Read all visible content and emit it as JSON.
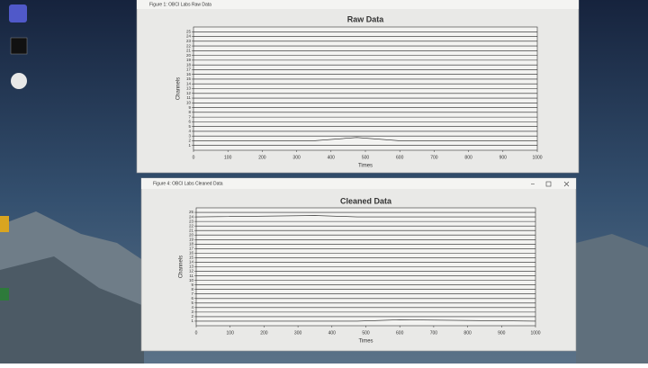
{
  "windows": [
    {
      "title": "Figure 1: OBCI Labs Raw Data"
    },
    {
      "title": "Figure 4: OBCI Labs Cleaned Data"
    }
  ],
  "chart_data": [
    {
      "type": "line",
      "title": "Raw Data",
      "xlabel": "Times",
      "ylabel": "Channels",
      "x": [
        0,
        350,
        475,
        600,
        1000
      ],
      "xlim": [
        0,
        1000
      ],
      "xticks": [
        0,
        100,
        200,
        300,
        400,
        500,
        600,
        700,
        800,
        900,
        1000
      ],
      "ylim": [
        0,
        26
      ],
      "yticks": [
        1,
        2,
        3,
        4,
        5,
        6,
        7,
        8,
        9,
        10,
        11,
        12,
        13,
        14,
        15,
        16,
        17,
        18,
        19,
        20,
        21,
        22,
        23,
        24,
        25
      ],
      "color": "#222222",
      "series": [
        {
          "values": [
            1,
            1,
            1,
            1,
            1
          ]
        },
        {
          "values": [
            2,
            2,
            2.7,
            2,
            2
          ]
        },
        {
          "values": [
            3,
            3,
            3,
            3,
            3
          ]
        },
        {
          "values": [
            4,
            4,
            4,
            4,
            4
          ]
        },
        {
          "values": [
            5,
            5,
            5,
            5,
            5
          ]
        },
        {
          "values": [
            6,
            6,
            6,
            6,
            6
          ]
        },
        {
          "values": [
            7,
            7,
            7,
            7,
            7
          ]
        },
        {
          "values": [
            8,
            8,
            8,
            8,
            8
          ]
        },
        {
          "values": [
            9,
            9,
            9,
            9,
            9
          ]
        },
        {
          "values": [
            10,
            10,
            10,
            10,
            10
          ]
        },
        {
          "values": [
            11,
            11,
            11,
            11,
            11
          ]
        },
        {
          "values": [
            12,
            12,
            12,
            12,
            12
          ]
        },
        {
          "values": [
            13,
            13,
            13,
            13,
            13
          ]
        },
        {
          "values": [
            14,
            14,
            14,
            14,
            14
          ]
        },
        {
          "values": [
            15,
            15,
            15,
            15,
            15
          ]
        },
        {
          "values": [
            16,
            16,
            16,
            16,
            16
          ]
        },
        {
          "values": [
            17,
            17,
            17,
            17,
            17
          ]
        },
        {
          "values": [
            18,
            18,
            18,
            18,
            18
          ]
        },
        {
          "values": [
            19,
            19,
            19,
            19,
            19
          ]
        },
        {
          "values": [
            20,
            20,
            20,
            20,
            20
          ]
        },
        {
          "values": [
            21,
            21,
            21,
            21,
            21
          ]
        },
        {
          "values": [
            22,
            22,
            22,
            22,
            22
          ]
        },
        {
          "values": [
            23,
            23,
            23,
            23,
            23
          ]
        },
        {
          "values": [
            24,
            24,
            24,
            24,
            24
          ]
        },
        {
          "values": [
            25,
            25,
            25,
            25,
            25
          ]
        }
      ]
    },
    {
      "type": "line",
      "title": "Cleaned Data",
      "xlabel": "Times",
      "ylabel": "Channels",
      "x": [
        0,
        350,
        475,
        600,
        1000
      ],
      "xlim": [
        0,
        1000
      ],
      "xticks": [
        0,
        100,
        200,
        300,
        400,
        500,
        600,
        700,
        800,
        900,
        1000
      ],
      "ylim": [
        0,
        26
      ],
      "yticks": [
        1,
        2,
        3,
        4,
        5,
        6,
        7,
        8,
        9,
        10,
        11,
        12,
        13,
        14,
        15,
        16,
        17,
        18,
        19,
        20,
        21,
        22,
        23,
        24,
        25
      ],
      "color": "#222222",
      "series": [
        {
          "values": [
            1,
            1,
            1,
            1.3,
            1
          ]
        },
        {
          "values": [
            2,
            2,
            2,
            2,
            2
          ]
        },
        {
          "values": [
            3,
            3,
            3,
            3,
            3
          ]
        },
        {
          "values": [
            4,
            4,
            4,
            4,
            4
          ]
        },
        {
          "values": [
            5,
            5,
            5,
            5,
            5
          ]
        },
        {
          "values": [
            6,
            6,
            6,
            6,
            6
          ]
        },
        {
          "values": [
            7,
            7,
            7,
            7,
            7
          ]
        },
        {
          "values": [
            8,
            8,
            8,
            8,
            8
          ]
        },
        {
          "values": [
            9,
            9,
            9,
            9,
            9
          ]
        },
        {
          "values": [
            10,
            10,
            10,
            10,
            10
          ]
        },
        {
          "values": [
            11,
            11,
            11,
            11,
            11
          ]
        },
        {
          "values": [
            12,
            12,
            12,
            12,
            12
          ]
        },
        {
          "values": [
            13,
            13,
            13,
            13,
            13
          ]
        },
        {
          "values": [
            14,
            14,
            14,
            14,
            14
          ]
        },
        {
          "values": [
            15,
            15,
            15,
            15,
            15
          ]
        },
        {
          "values": [
            16,
            16,
            16,
            16,
            16
          ]
        },
        {
          "values": [
            17,
            17,
            17,
            17,
            17
          ]
        },
        {
          "values": [
            18,
            18,
            18,
            18,
            18
          ]
        },
        {
          "values": [
            19,
            19,
            19,
            19,
            19
          ]
        },
        {
          "values": [
            20,
            20,
            20,
            20,
            20
          ]
        },
        {
          "values": [
            21,
            21,
            21,
            21,
            21
          ]
        },
        {
          "values": [
            22,
            22,
            22,
            22,
            22
          ]
        },
        {
          "values": [
            23,
            23,
            23,
            23,
            23
          ]
        },
        {
          "values": [
            24,
            24.3,
            24,
            24,
            24
          ]
        },
        {
          "values": [
            25,
            25,
            25,
            25,
            25
          ]
        }
      ]
    }
  ]
}
